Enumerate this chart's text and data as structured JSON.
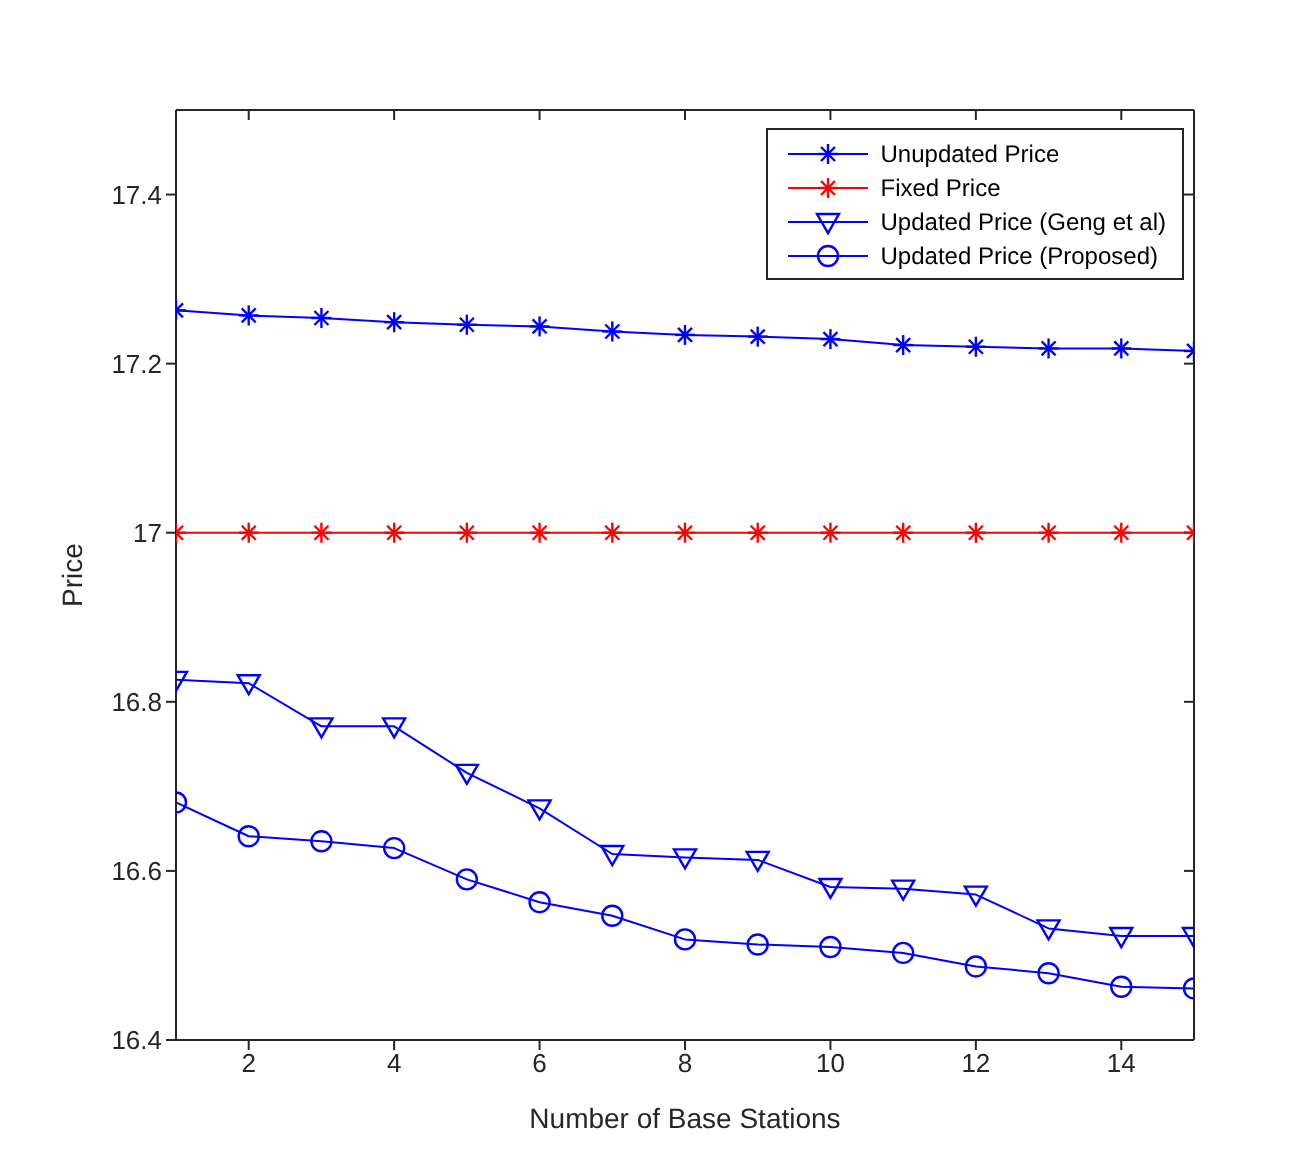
{
  "chart_data": {
    "type": "line",
    "xlabel": "Number of Base Stations",
    "ylabel": "Price",
    "x": [
      1,
      2,
      3,
      4,
      5,
      6,
      7,
      8,
      9,
      10,
      11,
      12,
      13,
      14,
      15
    ],
    "xlim": [
      1,
      15
    ],
    "xticks": [
      2,
      4,
      6,
      8,
      10,
      12,
      14
    ],
    "ylim": [
      16.4,
      17.5
    ],
    "yticks": [
      16.4,
      16.6,
      16.8,
      17,
      17.2,
      17.4
    ],
    "legend": "top right",
    "line_style": "solid",
    "series": [
      {
        "name": "Unupdated Price",
        "color": "#0000ff",
        "marker": "cross",
        "values": [
          17.263,
          17.257,
          17.254,
          17.249,
          17.246,
          17.244,
          17.238,
          17.234,
          17.232,
          17.229,
          17.222,
          17.22,
          17.218,
          17.218,
          17.215
        ]
      },
      {
        "name": "Fixed Price",
        "color": "#ff0000",
        "marker": "cross",
        "values": [
          17,
          17,
          17,
          17,
          17,
          17,
          17,
          17,
          17,
          17,
          17,
          17,
          17,
          17,
          17
        ]
      },
      {
        "name": "Updated Price (Geng et al)",
        "color": "#0000ff",
        "marker": "triangle",
        "values": [
          16.826,
          16.822,
          16.771,
          16.771,
          16.716,
          16.674,
          16.62,
          16.616,
          16.613,
          16.581,
          16.579,
          16.572,
          16.532,
          16.523,
          16.523
        ]
      },
      {
        "name": "Updated Price (Proposed)",
        "color": "#0000ff",
        "marker": "circle",
        "values": [
          16.681,
          16.641,
          16.635,
          16.627,
          16.59,
          16.563,
          16.547,
          16.519,
          16.513,
          16.51,
          16.503,
          16.487,
          16.479,
          16.463,
          16.461
        ]
      }
    ]
  }
}
